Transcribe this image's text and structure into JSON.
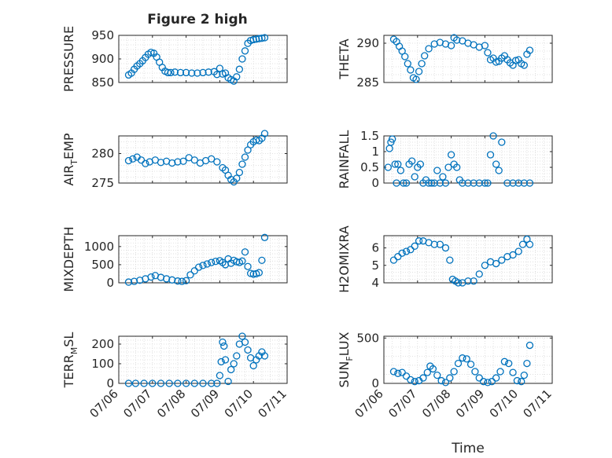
{
  "figure": {
    "title": "Figure 2 high"
  },
  "colors": {
    "marker": "#0072BD",
    "axis": "#262626",
    "grid": "#d9d9d9"
  },
  "time_ticks": [
    "07/06",
    "07/07",
    "07/08",
    "07/09",
    "07/10",
    "07/11"
  ],
  "chart_data": [
    {
      "type": "scatter",
      "title": "Figure 2 high",
      "ylabel": "PRESSURE",
      "ylim": [
        850,
        950
      ],
      "yticks": [
        850,
        900,
        950
      ],
      "xlabel": "",
      "xlim": [
        "07/06",
        "07/11"
      ],
      "x_tick_labels_shown": false,
      "grid": true,
      "series": [
        {
          "x": [
            "07/06 07:00",
            "07/06 09:00",
            "07/06 11:00",
            "07/06 13:00",
            "07/06 15:00",
            "07/06 17:00",
            "07/06 19:00",
            "07/06 21:00",
            "07/06 23:00",
            "07/07 01:00",
            "07/07 03:00",
            "07/07 05:00",
            "07/07 07:00",
            "07/07 09:00",
            "07/07 11:00",
            "07/07 13:00",
            "07/07 16:00",
            "07/07 20:00",
            "07/08 00:00",
            "07/08 04:00",
            "07/08 08:00",
            "07/08 12:00",
            "07/08 16:00",
            "07/08 20:00",
            "07/08 22:00",
            "07/09 00:00",
            "07/09 02:00",
            "07/09 04:00",
            "07/09 06:00",
            "07/09 08:00",
            "07/09 10:00",
            "07/09 12:00",
            "07/09 14:00",
            "07/09 16:00",
            "07/09 18:00",
            "07/09 20:00",
            "07/09 22:00",
            "07/10 00:00",
            "07/10 02:00",
            "07/10 04:00",
            "07/10 06:00",
            "07/10 08:00"
          ],
          "y": [
            866,
            870,
            878,
            885,
            890,
            896,
            903,
            910,
            914,
            912,
            904,
            893,
            882,
            874,
            871,
            871,
            872,
            871,
            871,
            870,
            870,
            871,
            872,
            873,
            867,
            880,
            868,
            870,
            860,
            856,
            853,
            862,
            878,
            900,
            917,
            933,
            939,
            941,
            942,
            943,
            944,
            945
          ]
        }
      ]
    },
    {
      "type": "scatter",
      "ylabel": "THETA",
      "ylim": [
        285,
        291
      ],
      "yticks": [
        285,
        290
      ],
      "xlim": [
        "07/06",
        "07/11"
      ],
      "x_tick_labels_shown": false,
      "grid": true,
      "series": [
        {
          "x": [
            "07/06 07:00",
            "07/06 09:00",
            "07/06 11:00",
            "07/06 13:00",
            "07/06 15:00",
            "07/06 17:00",
            "07/06 19:00",
            "07/06 21:00",
            "07/06 23:00",
            "07/07 01:00",
            "07/07 03:00",
            "07/07 05:00",
            "07/07 08:00",
            "07/07 12:00",
            "07/07 16:00",
            "07/07 20:00",
            "07/08 00:00",
            "07/08 02:00",
            "07/08 04:00",
            "07/08 08:00",
            "07/08 12:00",
            "07/08 16:00",
            "07/08 20:00",
            "07/09 00:00",
            "07/09 02:00",
            "07/09 04:00",
            "07/09 06:00",
            "07/09 08:00",
            "07/09 10:00",
            "07/09 12:00",
            "07/09 14:00",
            "07/09 16:00",
            "07/09 18:00",
            "07/09 20:00",
            "07/09 22:00",
            "07/10 00:00",
            "07/10 02:00",
            "07/10 04:00",
            "07/10 06:00",
            "07/10 08:00"
          ],
          "y": [
            290.5,
            290.2,
            289.6,
            289.0,
            288.3,
            287.4,
            286.6,
            285.6,
            285.4,
            286.4,
            287.4,
            288.4,
            289.3,
            289.9,
            290.1,
            289.9,
            289.7,
            290.7,
            290.4,
            290.3,
            290.0,
            289.8,
            289.5,
            289.7,
            288.8,
            287.9,
            288.1,
            287.6,
            287.7,
            288.1,
            288.4,
            287.9,
            287.5,
            287.2,
            287.8,
            287.9,
            287.4,
            287.2,
            288.6,
            289.1
          ]
        }
      ]
    },
    {
      "type": "scatter",
      "ylabel": "AIR_TEMP",
      "ylim": [
        275,
        283
      ],
      "yticks": [
        275,
        280
      ],
      "xlim": [
        "07/06",
        "07/11"
      ],
      "x_tick_labels_shown": false,
      "grid": true,
      "series": [
        {
          "x": [
            "07/06 07:00",
            "07/06 10:00",
            "07/06 13:00",
            "07/06 16:00",
            "07/06 19:00",
            "07/06 22:00",
            "07/07 02:00",
            "07/07 06:00",
            "07/07 10:00",
            "07/07 14:00",
            "07/07 18:00",
            "07/07 22:00",
            "07/08 02:00",
            "07/08 06:00",
            "07/08 10:00",
            "07/08 14:00",
            "07/08 18:00",
            "07/08 22:00",
            "07/09 02:00",
            "07/09 04:00",
            "07/09 06:00",
            "07/09 08:00",
            "07/09 10:00",
            "07/09 12:00",
            "07/09 14:00",
            "07/09 16:00",
            "07/09 18:00",
            "07/09 20:00",
            "07/09 22:00",
            "07/10 00:00",
            "07/10 02:00",
            "07/10 04:00",
            "07/10 06:00",
            "07/10 08:00"
          ],
          "y": [
            278.8,
            279.1,
            279.4,
            278.9,
            278.3,
            278.6,
            278.9,
            278.5,
            278.7,
            278.4,
            278.6,
            278.7,
            279.3,
            278.9,
            278.4,
            278.8,
            279.1,
            278.6,
            277.6,
            277.2,
            276.3,
            275.6,
            275.2,
            275.8,
            276.8,
            278.2,
            279.4,
            280.6,
            281.5,
            282.0,
            282.3,
            282.2,
            282.6,
            283.4
          ]
        }
      ]
    },
    {
      "type": "scatter",
      "ylabel": "RAINFALL",
      "ylim": [
        0,
        1.5
      ],
      "yticks": [
        0,
        0.5,
        1,
        1.5
      ],
      "xlim": [
        "07/06",
        "07/11"
      ],
      "x_tick_labels_shown": false,
      "grid": true,
      "series": [
        {
          "x": [
            "07/06 03:00",
            "07/06 04:00",
            "07/06 05:00",
            "07/06 06:00",
            "07/06 08:00",
            "07/06 09:00",
            "07/06 10:00",
            "07/06 12:00",
            "07/06 14:00",
            "07/06 16:00",
            "07/06 18:00",
            "07/06 20:00",
            "07/06 22:00",
            "07/07 00:00",
            "07/07 02:00",
            "07/07 04:00",
            "07/07 06:00",
            "07/07 08:00",
            "07/07 10:00",
            "07/07 12:00",
            "07/07 14:00",
            "07/07 16:00",
            "07/07 18:00",
            "07/07 20:00",
            "07/07 22:00",
            "07/08 00:00",
            "07/08 02:00",
            "07/08 04:00",
            "07/08 06:00",
            "07/08 08:00",
            "07/08 12:00",
            "07/08 16:00",
            "07/08 20:00",
            "07/09 00:00",
            "07/09 02:00",
            "07/09 04:00",
            "07/09 06:00",
            "07/09 08:00",
            "07/09 10:00",
            "07/09 12:00",
            "07/09 16:00",
            "07/09 20:00",
            "07/10 00:00",
            "07/10 04:00",
            "07/10 08:00"
          ],
          "y": [
            0.5,
            1.1,
            1.3,
            1.4,
            0.6,
            0.0,
            0.6,
            0.4,
            0.0,
            0.0,
            0.6,
            0.7,
            0.2,
            0.5,
            0.6,
            0.0,
            0.1,
            0.0,
            0.0,
            0.0,
            0.4,
            0.0,
            0.2,
            0.0,
            0.5,
            0.9,
            0.6,
            0.5,
            0.1,
            0.0,
            0.0,
            0.0,
            0.0,
            0.0,
            0.0,
            0.9,
            1.5,
            0.6,
            0.4,
            1.3,
            0.0,
            0.0,
            0.0,
            0.0,
            0.0
          ]
        }
      ]
    },
    {
      "type": "scatter",
      "ylabel": "MIXDEPTH",
      "ylim": [
        0,
        1300
      ],
      "yticks": [
        0,
        500,
        1000
      ],
      "xlim": [
        "07/06",
        "07/11"
      ],
      "x_tick_labels_shown": false,
      "grid": true,
      "series": [
        {
          "x": [
            "07/06 07:00",
            "07/06 11:00",
            "07/06 15:00",
            "07/06 19:00",
            "07/06 23:00",
            "07/07 02:00",
            "07/07 06:00",
            "07/07 10:00",
            "07/07 14:00",
            "07/07 18:00",
            "07/07 21:00",
            "07/08 00:00",
            "07/08 03:00",
            "07/08 06:00",
            "07/08 09:00",
            "07/08 12:00",
            "07/08 15:00",
            "07/08 18:00",
            "07/08 21:00",
            "07/09 00:00",
            "07/09 02:00",
            "07/09 04:00",
            "07/09 06:00",
            "07/09 08:00",
            "07/09 10:00",
            "07/09 12:00",
            "07/09 14:00",
            "07/09 16:00",
            "07/09 18:00",
            "07/09 20:00",
            "07/09 22:00",
            "07/10 00:00",
            "07/10 02:00",
            "07/10 04:00",
            "07/10 06:00",
            "07/10 08:00"
          ],
          "y": [
            20,
            40,
            70,
            110,
            160,
            200,
            150,
            110,
            80,
            50,
            40,
            60,
            220,
            330,
            430,
            480,
            520,
            560,
            590,
            610,
            560,
            500,
            660,
            540,
            620,
            580,
            560,
            600,
            850,
            450,
            260,
            240,
            250,
            280,
            620,
            1250
          ]
        }
      ]
    },
    {
      "type": "scatter",
      "ylabel": "H2OMIXRA",
      "ylim": [
        4,
        6.7
      ],
      "yticks": [
        4,
        5,
        6
      ],
      "xlim": [
        "07/06",
        "07/11"
      ],
      "x_tick_labels_shown": false,
      "grid": true,
      "series": [
        {
          "x": [
            "07/06 07:00",
            "07/06 10:00",
            "07/06 13:00",
            "07/06 16:00",
            "07/06 19:00",
            "07/06 22:00",
            "07/07 01:00",
            "07/07 04:00",
            "07/07 08:00",
            "07/07 12:00",
            "07/07 16:00",
            "07/07 20:00",
            "07/07 23:00",
            "07/08 01:00",
            "07/08 03:00",
            "07/08 05:00",
            "07/08 08:00",
            "07/08 12:00",
            "07/08 16:00",
            "07/08 20:00",
            "07/09 00:00",
            "07/09 04:00",
            "07/09 08:00",
            "07/09 12:00",
            "07/09 16:00",
            "07/09 20:00",
            "07/10 00:00",
            "07/10 03:00",
            "07/10 06:00",
            "07/10 08:00"
          ],
          "y": [
            5.3,
            5.5,
            5.7,
            5.8,
            5.9,
            6.1,
            6.4,
            6.4,
            6.3,
            6.2,
            6.2,
            6.0,
            5.3,
            4.2,
            4.1,
            4.0,
            4.0,
            4.1,
            4.1,
            4.5,
            5.0,
            5.2,
            5.1,
            5.3,
            5.5,
            5.6,
            5.8,
            6.2,
            6.5,
            6.2
          ]
        }
      ]
    },
    {
      "type": "scatter",
      "ylabel": "TERR_MSL",
      "ylim": [
        0,
        240
      ],
      "yticks": [
        0,
        100,
        200
      ],
      "xlim": [
        "07/06",
        "07/11"
      ],
      "x_tick_labels_shown": false,
      "grid": true,
      "series": [
        {
          "x": [
            "07/06 07:00",
            "07/06 12:00",
            "07/06 18:00",
            "07/07 00:00",
            "07/07 06:00",
            "07/07 12:00",
            "07/07 18:00",
            "07/08 00:00",
            "07/08 06:00",
            "07/08 12:00",
            "07/08 18:00",
            "07/08 22:00",
            "07/09 00:00",
            "07/09 01:00",
            "07/09 02:00",
            "07/09 03:00",
            "07/09 04:00",
            "07/09 06:00",
            "07/09 08:00",
            "07/09 10:00",
            "07/09 12:00",
            "07/09 14:00",
            "07/09 16:00",
            "07/09 18:00",
            "07/09 20:00",
            "07/09 22:00",
            "07/10 00:00",
            "07/10 02:00",
            "07/10 04:00",
            "07/10 06:00",
            "07/10 08:00"
          ],
          "y": [
            0,
            0,
            0,
            0,
            0,
            0,
            0,
            0,
            0,
            0,
            0,
            0,
            40,
            110,
            210,
            190,
            120,
            10,
            70,
            100,
            140,
            200,
            240,
            210,
            170,
            130,
            90,
            120,
            140,
            160,
            140
          ]
        }
      ]
    },
    {
      "type": "scatter",
      "ylabel": "SUN_FLUX",
      "ylim": [
        0,
        520
      ],
      "yticks": [
        0,
        500
      ],
      "xlabel": "Time",
      "xlim": [
        "07/06",
        "07/11"
      ],
      "x_tick_labels_shown": false,
      "grid": true,
      "series": [
        {
          "x": [
            "07/06 07:00",
            "07/06 10:00",
            "07/06 13:00",
            "07/06 16:00",
            "07/06 19:00",
            "07/06 22:00",
            "07/07 01:00",
            "07/07 04:00",
            "07/07 07:00",
            "07/07 09:00",
            "07/07 11:00",
            "07/07 14:00",
            "07/07 17:00",
            "07/07 20:00",
            "07/07 23:00",
            "07/08 02:00",
            "07/08 05:00",
            "07/08 08:00",
            "07/08 11:00",
            "07/08 14:00",
            "07/08 17:00",
            "07/08 20:00",
            "07/08 23:00",
            "07/09 02:00",
            "07/09 05:00",
            "07/09 08:00",
            "07/09 11:00",
            "07/09 14:00",
            "07/09 17:00",
            "07/09 20:00",
            "07/09 23:00",
            "07/10 02:00",
            "07/10 04:00",
            "07/10 06:00",
            "07/10 08:00"
          ],
          "y": [
            130,
            110,
            120,
            80,
            40,
            20,
            30,
            60,
            120,
            190,
            160,
            90,
            30,
            10,
            60,
            130,
            220,
            280,
            270,
            210,
            130,
            60,
            20,
            10,
            20,
            60,
            130,
            240,
            220,
            120,
            30,
            20,
            90,
            220,
            420
          ]
        }
      ]
    }
  ]
}
